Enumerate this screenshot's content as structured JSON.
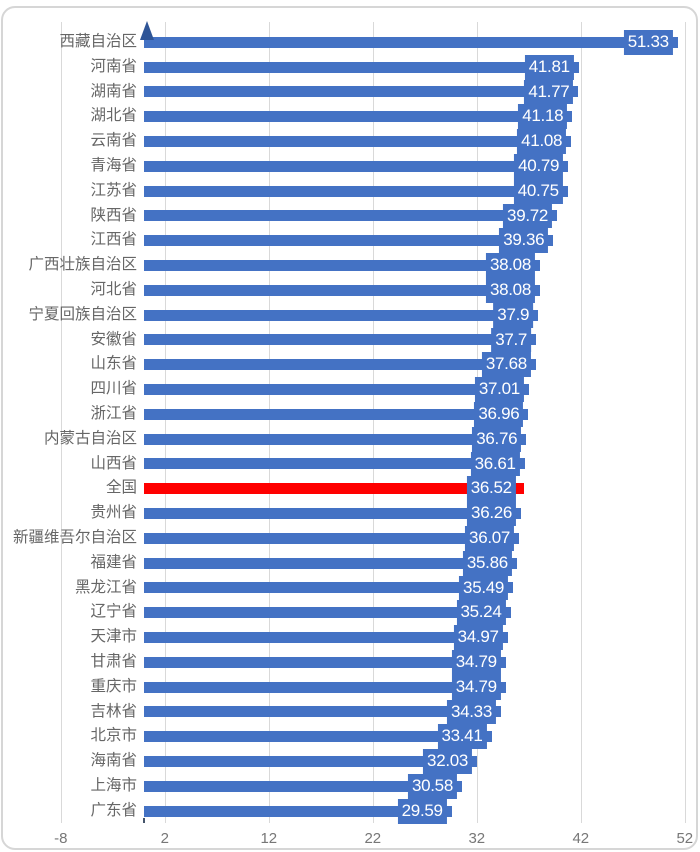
{
  "chart_data": {
    "type": "bar",
    "orientation": "horizontal",
    "categories": [
      "西藏自治区",
      "河南省",
      "湖南省",
      "湖北省",
      "云南省",
      "青海省",
      "江苏省",
      "陕西省",
      "江西省",
      "广西壮族自治区",
      "河北省",
      "宁夏回族自治区",
      "安徽省",
      "山东省",
      "四川省",
      "浙江省",
      "内蒙古自治区",
      "山西省",
      "全国",
      "贵州省",
      "新疆维吾尔自治区",
      "福建省",
      "黑龙江省",
      "辽宁省",
      "天津市",
      "甘肃省",
      "重庆市",
      "吉林省",
      "北京市",
      "海南省",
      "上海市",
      "广东省"
    ],
    "values": [
      51.33,
      41.81,
      41.77,
      41.18,
      41.08,
      40.79,
      40.75,
      39.72,
      39.36,
      38.08,
      38.08,
      37.9,
      37.7,
      37.68,
      37.01,
      36.96,
      36.76,
      36.61,
      36.52,
      36.26,
      36.07,
      35.86,
      35.49,
      35.24,
      34.97,
      34.79,
      34.79,
      34.33,
      33.41,
      32.03,
      30.58,
      29.59
    ],
    "value_labels": [
      "51.33",
      "41.81",
      "41.77",
      "41.18",
      "41.08",
      "40.79",
      "40.75",
      "39.72",
      "39.36",
      "38.08",
      "38.08",
      "37.9",
      "37.7",
      "37.68",
      "37.01",
      "36.96",
      "36.76",
      "36.61",
      "36.52",
      "36.26",
      "36.07",
      "35.86",
      "35.49",
      "35.24",
      "34.97",
      "34.79",
      "34.79",
      "34.33",
      "33.41",
      "32.03",
      "30.58",
      "29.59"
    ],
    "highlight": {
      "category": "全国",
      "index": 18,
      "bar_color": "#ff0000"
    },
    "bar_color": "#4472c4",
    "value_label_box_color": "#4472c4",
    "value_label_text_color": "#ffffff",
    "category_label_color": "#666666",
    "tick_label_color": "#777777",
    "gridline_color": "#d9d9d9",
    "axis": {
      "ticks": [
        "-8",
        "2",
        "12",
        "22",
        "32",
        "42",
        "52"
      ],
      "tick_values": [
        -8,
        2,
        12,
        22,
        32,
        42,
        52
      ],
      "xlim": [
        -8,
        52
      ],
      "grid": true
    },
    "icons": {
      "axis_arrow": "up-arrow-triangle",
      "axis_arrow_color": "#2f5597"
    },
    "title": "",
    "xlabel": "",
    "ylabel": ""
  }
}
